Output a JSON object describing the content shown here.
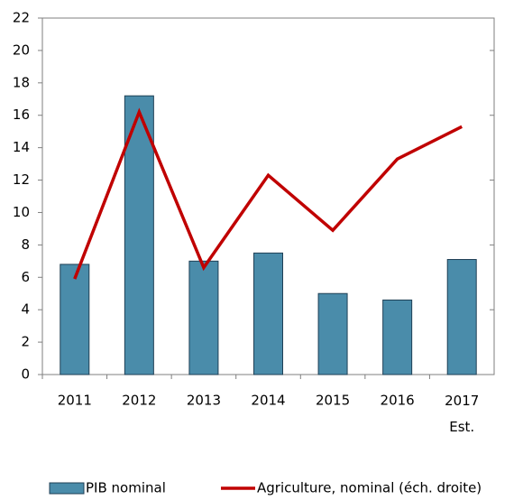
{
  "chart_data": {
    "type": "bar",
    "categories": [
      "2011",
      "2012",
      "2013",
      "2014",
      "2015",
      "2016",
      "2017 Est."
    ],
    "series": [
      {
        "name": "PIB nominal",
        "type": "bar",
        "color": "#4a8caa",
        "values": [
          6.8,
          17.2,
          7.0,
          7.5,
          5.0,
          4.6,
          7.1
        ]
      },
      {
        "name": "Agriculture, nominal (éch. droite)",
        "type": "line",
        "color": "#c00000",
        "values": [
          5.9,
          16.2,
          6.6,
          12.3,
          8.9,
          13.3,
          15.3
        ]
      }
    ],
    "ylim": [
      0,
      22
    ],
    "yticks": [
      0,
      2,
      4,
      6,
      8,
      10,
      12,
      14,
      16,
      18,
      20,
      22
    ],
    "grid": false,
    "legend": "bottom"
  }
}
